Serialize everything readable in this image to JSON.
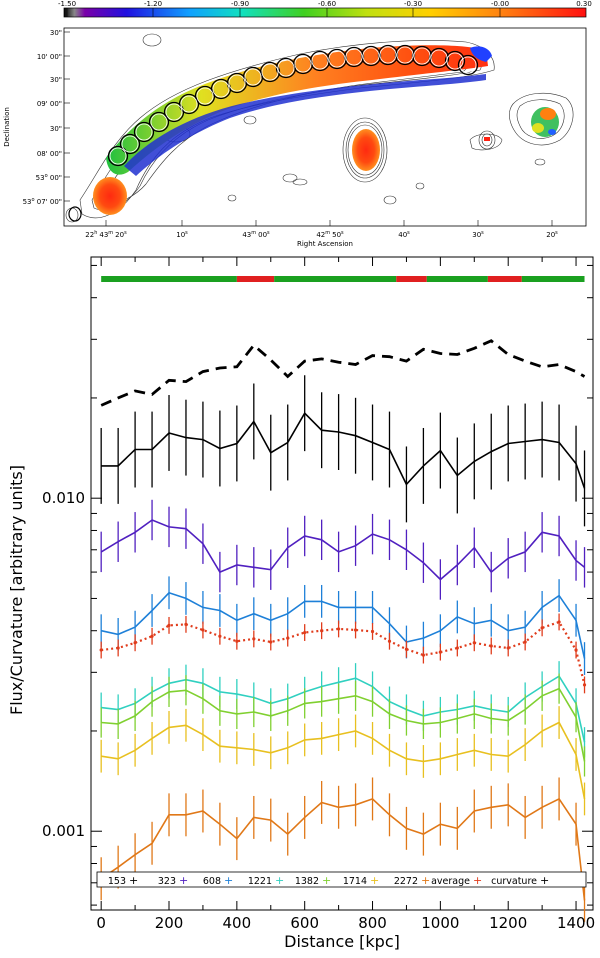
{
  "colorbar": {
    "ticks": [
      "-1.50",
      "-1.20",
      "-0.90",
      "-0.60",
      "-0.30",
      "-0.00",
      "0.30"
    ],
    "range": [
      -1.5,
      0.3
    ]
  },
  "map": {
    "xlabel": "Right Ascension",
    "ylabel": "Declination",
    "ra_ticks": [
      {
        "h": "22",
        "hs": "h",
        "m": "43",
        "ms": "m",
        "s": "20",
        "ss": "s"
      },
      {
        "s": "10",
        "ss": "s"
      },
      {
        "m": "43",
        "ms": "m",
        "s": "00",
        "ss": "s"
      },
      {
        "m": "42",
        "ms": "m",
        "s": "50",
        "ss": "s"
      },
      {
        "s": "40",
        "ss": "s"
      },
      {
        "s": "30",
        "ss": "s"
      },
      {
        "s": "20",
        "ss": "s"
      }
    ],
    "dec_ticks": [
      {
        "t": "30\""
      },
      {
        "t": "10' 00\""
      },
      {
        "t": "30\""
      },
      {
        "t": "09' 00\""
      },
      {
        "t": "30\""
      },
      {
        "t": "08' 00\""
      },
      {
        "deg": "53",
        "degsup": "o",
        "rest": " 00\""
      },
      {
        "deg": "53",
        "degsup": "o",
        "rest": " 07' 00\""
      }
    ]
  },
  "chart_data": {
    "type": "line",
    "xlabel": "Distance [kpc]",
    "ylabel": "Flux/Curvature [arbitrary units]",
    "yscale": "log",
    "xlim": [
      -30,
      1450
    ],
    "ylim": [
      0.00058,
      0.053
    ],
    "xticks": [
      0,
      200,
      400,
      600,
      800,
      1000,
      1200,
      1400
    ],
    "yticks": [
      {
        "v": 0.001,
        "label": "0.001"
      },
      {
        "v": 0.01,
        "label": "0.010"
      }
    ],
    "x": [
      0,
      50,
      100,
      150,
      200,
      250,
      300,
      350,
      400,
      450,
      500,
      550,
      600,
      650,
      700,
      750,
      800,
      850,
      900,
      950,
      1000,
      1050,
      1100,
      1150,
      1200,
      1250,
      1300,
      1350,
      1400,
      1425
    ],
    "series": [
      {
        "name": "153",
        "style": "solid",
        "color": "#000000",
        "errfrac": 0.3,
        "values": [
          0.0125,
          0.0125,
          0.014,
          0.014,
          0.0157,
          0.0152,
          0.015,
          0.0141,
          0.0146,
          0.017,
          0.0137,
          0.0147,
          0.018,
          0.016,
          0.0158,
          0.0154,
          0.0147,
          0.014,
          0.011,
          0.0125,
          0.0139,
          0.0117,
          0.0129,
          0.0138,
          0.0146,
          0.0148,
          0.015,
          0.0147,
          0.0127,
          0.0107
        ]
      },
      {
        "name": "323",
        "style": "solid",
        "color": "#5020c0",
        "errfrac": 0.15,
        "values": [
          0.0069,
          0.0074,
          0.0079,
          0.0086,
          0.0082,
          0.0081,
          0.0073,
          0.006,
          0.0063,
          0.0062,
          0.0061,
          0.0071,
          0.0077,
          0.0075,
          0.0069,
          0.0072,
          0.0078,
          0.0075,
          0.007,
          0.0064,
          0.0057,
          0.0063,
          0.0071,
          0.006,
          0.0066,
          0.0069,
          0.0079,
          0.0077,
          0.0065,
          0.0062
        ]
      },
      {
        "name": "608",
        "style": "solid",
        "color": "#1e80d8",
        "errfrac": 0.12,
        "values": [
          0.004,
          0.0039,
          0.0041,
          0.0046,
          0.0052,
          0.005,
          0.0047,
          0.0046,
          0.0043,
          0.0045,
          0.0043,
          0.0045,
          0.0049,
          0.0049,
          0.0047,
          0.0047,
          0.0047,
          0.0042,
          0.0037,
          0.0038,
          0.004,
          0.0044,
          0.0042,
          0.0043,
          0.004,
          0.0041,
          0.0047,
          0.0051,
          0.0043,
          0.0033
        ]
      },
      {
        "name": "1221",
        "style": "solid",
        "color": "#30d0c0",
        "errfrac": 0.11,
        "values": [
          0.00235,
          0.00232,
          0.00242,
          0.00262,
          0.00278,
          0.00285,
          0.00278,
          0.00262,
          0.00258,
          0.00252,
          0.00242,
          0.0025,
          0.00262,
          0.00272,
          0.0028,
          0.00288,
          0.00272,
          0.00245,
          0.00232,
          0.00222,
          0.00228,
          0.00232,
          0.00238,
          0.00232,
          0.00228,
          0.00252,
          0.00272,
          0.00292,
          0.00242,
          0.00185
        ]
      },
      {
        "name": "1382",
        "style": "solid",
        "color": "#80d030",
        "errfrac": 0.11,
        "values": [
          0.00212,
          0.0021,
          0.00222,
          0.00245,
          0.00262,
          0.00265,
          0.0025,
          0.0023,
          0.00225,
          0.00228,
          0.00222,
          0.0023,
          0.00242,
          0.00245,
          0.0025,
          0.00255,
          0.00245,
          0.00225,
          0.00215,
          0.0021,
          0.00212,
          0.00218,
          0.00225,
          0.00218,
          0.00215,
          0.00232,
          0.00255,
          0.00268,
          0.0022,
          0.00162
        ]
      },
      {
        "name": "1714",
        "style": "solid",
        "color": "#e8c020",
        "errfrac": 0.12,
        "values": [
          0.00168,
          0.00165,
          0.00175,
          0.0019,
          0.00205,
          0.00208,
          0.00195,
          0.0018,
          0.00178,
          0.00176,
          0.00172,
          0.00178,
          0.00188,
          0.0019,
          0.00195,
          0.002,
          0.0019,
          0.00175,
          0.00165,
          0.00162,
          0.00165,
          0.0017,
          0.00175,
          0.0017,
          0.00168,
          0.00182,
          0.002,
          0.00212,
          0.0017,
          0.00125
        ]
      },
      {
        "name": "2272",
        "style": "solid",
        "color": "#e07818",
        "errfrac": 0.16,
        "values": [
          0.00072,
          0.00078,
          0.00085,
          0.00092,
          0.00112,
          0.00112,
          0.00115,
          0.00105,
          0.00095,
          0.0011,
          0.00108,
          0.00098,
          0.0011,
          0.00122,
          0.00118,
          0.0012,
          0.00125,
          0.00112,
          0.00102,
          0.00098,
          0.00105,
          0.00102,
          0.00115,
          0.00118,
          0.0012,
          0.0011,
          0.00118,
          0.00125,
          0.00105,
          0.00062
        ]
      },
      {
        "name": "average",
        "style": "dotted",
        "color": "#e03c1c",
        "errfrac": 0.06,
        "values": [
          0.0035,
          0.00355,
          0.00368,
          0.00385,
          0.00415,
          0.00418,
          0.00402,
          0.00385,
          0.00372,
          0.00378,
          0.0037,
          0.0038,
          0.00395,
          0.004,
          0.00405,
          0.00402,
          0.00398,
          0.00372,
          0.00352,
          0.00338,
          0.00345,
          0.00355,
          0.00368,
          0.0036,
          0.00355,
          0.0037,
          0.00408,
          0.00425,
          0.0035,
          0.00275
        ]
      },
      {
        "name": "curvature",
        "style": "dashed",
        "color": "#000000",
        "errfrac": 0,
        "values": [
          0.019,
          0.02,
          0.021,
          0.0205,
          0.0226,
          0.0224,
          0.024,
          0.0246,
          0.0248,
          0.0288,
          0.026,
          0.0232,
          0.0258,
          0.0262,
          0.0256,
          0.0252,
          0.0268,
          0.0266,
          0.0258,
          0.028,
          0.0272,
          0.027,
          0.0282,
          0.0297,
          0.027,
          0.0258,
          0.0248,
          0.0252,
          0.024,
          0.0232
        ]
      }
    ],
    "segments": [
      {
        "from": 0,
        "to": 400,
        "color": "#1aa020"
      },
      {
        "from": 400,
        "to": 510,
        "color": "#e02020"
      },
      {
        "from": 510,
        "to": 870,
        "color": "#1aa020"
      },
      {
        "from": 870,
        "to": 960,
        "color": "#e02020"
      },
      {
        "from": 960,
        "to": 1140,
        "color": "#1aa020"
      },
      {
        "from": 1140,
        "to": 1240,
        "color": "#e02020"
      },
      {
        "from": 1240,
        "to": 1425,
        "color": "#1aa020"
      }
    ],
    "legend": {
      "placement": "bottom",
      "entries": [
        {
          "label": "153",
          "sym": "+",
          "color": "#000000"
        },
        {
          "label": "323",
          "sym": "+",
          "color": "#5020c0"
        },
        {
          "label": "608",
          "sym": "+",
          "color": "#1e80d8"
        },
        {
          "label": "1221",
          "sym": "+",
          "color": "#30d0c0"
        },
        {
          "label": "1382",
          "sym": "+",
          "color": "#80d030"
        },
        {
          "label": "1714",
          "sym": "+",
          "color": "#e8c020"
        },
        {
          "label": "2272",
          "sym": "+",
          "color": "#e07818"
        },
        {
          "label": "average",
          "sym": "+",
          "color": "#e03c1c"
        },
        {
          "label": "curvature",
          "sym": "+",
          "color": "#000000"
        }
      ]
    }
  }
}
